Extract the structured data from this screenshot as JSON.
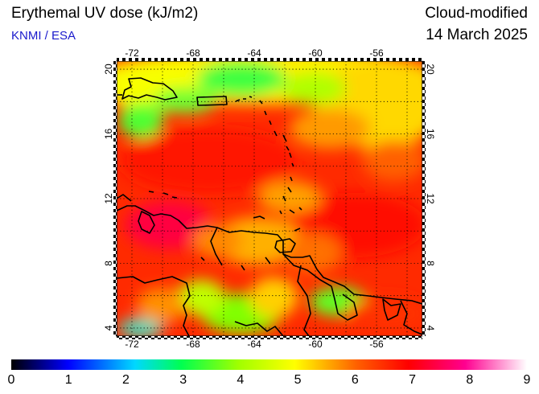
{
  "header": {
    "title": "Erythemal UV dose (kJ/m2)",
    "subtitle": "KNMI / ESA",
    "product": "Cloud-modified",
    "date": "14 March 2025"
  },
  "map": {
    "region": "Caribbean",
    "lon_range": [
      -73,
      -53
    ],
    "lat_range": [
      3.5,
      20.5
    ],
    "lon_ticks": [
      -72,
      -68,
      -64,
      -60,
      -56
    ],
    "lat_ticks": [
      4,
      8,
      12,
      16,
      20
    ],
    "lon_tick_labels": [
      "-72",
      "-68",
      "-64",
      "-60",
      "-56"
    ],
    "lat_tick_labels": [
      "4",
      "8",
      "12",
      "16",
      "20"
    ],
    "gridlines": "dotted every 2 degrees",
    "coastline_color": "#000000"
  },
  "colorbar": {
    "min": 0,
    "max": 9,
    "labels": [
      "0",
      "1",
      "2",
      "3",
      "4",
      "5",
      "6",
      "7",
      "8",
      "9"
    ],
    "stops": [
      "#000000",
      "#0000ff",
      "#00d8ff",
      "#00ff00",
      "#ffff00",
      "#ff8000",
      "#ff0000",
      "#ff00a0",
      "#ffffff"
    ]
  }
}
